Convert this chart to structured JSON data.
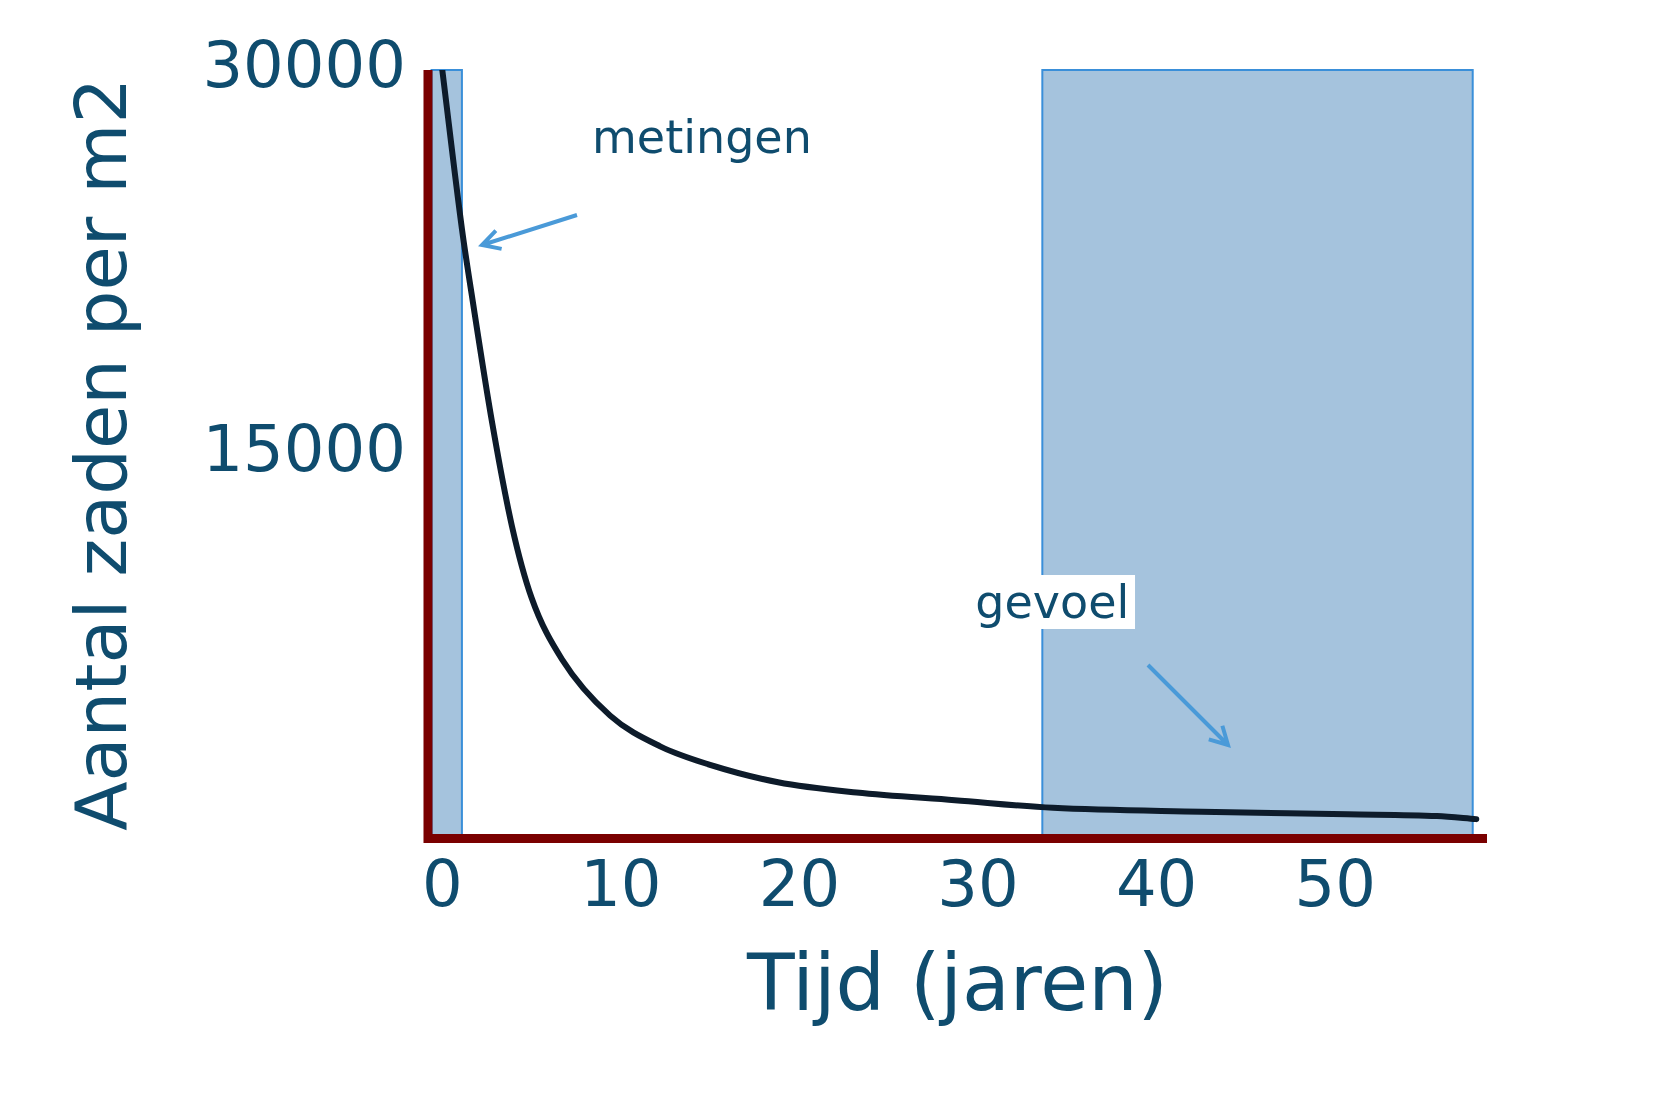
{
  "chart_data": {
    "type": "line",
    "xlabel": "Tijd (jaren)",
    "ylabel": "Aantal zaden per m2",
    "x": [
      0,
      1.1,
      1.7,
      2.8,
      3.9,
      5.0,
      6.7,
      9.4,
      12.2,
      14.9,
      18.8,
      23.2,
      28.7,
      34.2,
      42.5,
      50.7,
      55.7,
      57.9
    ],
    "series": [
      {
        "color": "#0d1b2a",
        "values": [
          30000,
          23800,
          21000,
          16200,
          12200,
          9400,
          7000,
          4800,
          3600,
          2900,
          2200,
          1800,
          1500,
          1200,
          1050,
          950,
          880,
          760
        ]
      }
    ],
    "xlim": [
      -0.8,
      58.5
    ],
    "xticks": [
      0,
      10,
      20,
      30,
      40,
      50
    ],
    "ylim": [
      0,
      30000
    ],
    "yticks": [
      15000,
      30000
    ],
    "bands": [
      {
        "axis": "x",
        "from": -0.6,
        "to": 1.1,
        "label": "metingen",
        "color": "#8fb4d4"
      },
      {
        "axis": "x",
        "from": 33.6,
        "to": 57.7,
        "label": "gevoel",
        "color": "#8fb4d4"
      }
    ],
    "grid": false,
    "legend": false,
    "marker": "none",
    "line_style": "solid"
  }
}
